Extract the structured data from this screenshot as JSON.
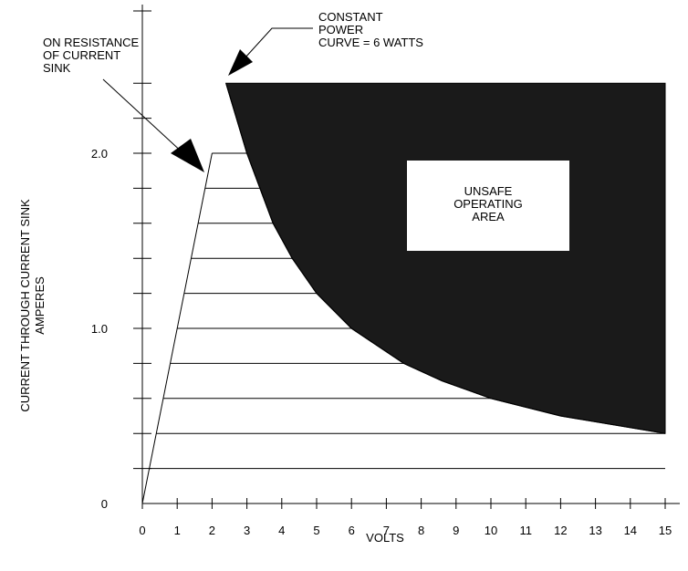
{
  "chart_data": {
    "type": "area",
    "title": "",
    "xlabel": "VOLTS",
    "ylabel_lines": [
      "CURRENT THROUGH CURRENT SINK",
      "AMPERES"
    ],
    "xlim": [
      0,
      15
    ],
    "ylim": [
      0,
      2.5
    ],
    "x_ticks": [
      0,
      1,
      2,
      3,
      4,
      5,
      6,
      7,
      8,
      9,
      10,
      11,
      12,
      13,
      14,
      15
    ],
    "x_tick_labels": [
      "0",
      "1",
      "2",
      "3",
      "4",
      "5",
      "6",
      "7",
      "8",
      "9",
      "10",
      "11",
      "12",
      "13",
      "14",
      "15"
    ],
    "y_tick_values": [
      0,
      0.2,
      0.4,
      0.6,
      0.8,
      1.0,
      1.2,
      1.4,
      1.6,
      1.8,
      2.0,
      2.2,
      2.4
    ],
    "y_labeled_ticks": [
      {
        "value": 0,
        "label": "0"
      },
      {
        "value": 1.0,
        "label": "1.0"
      },
      {
        "value": 2.0,
        "label": "2.0"
      }
    ],
    "on_resistance_line": [
      [
        0,
        0
      ],
      [
        2,
        2.0
      ]
    ],
    "current_limit": {
      "value": 2.0,
      "x_range": [
        2,
        3
      ]
    },
    "constant_power_curve": {
      "watts": 6,
      "points": [
        [
          2.4,
          2.4
        ],
        [
          3,
          2.0
        ],
        [
          3.75,
          1.6
        ],
        [
          4.3,
          1.4
        ],
        [
          5,
          1.2
        ],
        [
          6,
          1.0
        ],
        [
          7.5,
          0.8
        ],
        [
          8.6,
          0.7
        ],
        [
          10,
          0.6
        ],
        [
          12,
          0.5
        ],
        [
          15,
          0.4
        ]
      ]
    },
    "unsafe_area_top": 2.4,
    "safe_region_hatch_levels": [
      0.2,
      0.4,
      0.6,
      0.8,
      1.0,
      1.2,
      1.4,
      1.6,
      1.8,
      2.0
    ],
    "annotations": {
      "on_resistance": [
        "ON RESISTANCE",
        "OF CURRENT",
        "SINK"
      ],
      "constant_power": [
        "CONSTANT",
        "POWER",
        "CURVE = 6 WATTS"
      ],
      "unsafe_area": [
        "UNSAFE",
        "OPERATING",
        "AREA"
      ]
    },
    "colors": {
      "unsafe_fill": "#1a1a1a",
      "line": "#000000",
      "label_box": "#ffffff"
    },
    "grid": false
  }
}
